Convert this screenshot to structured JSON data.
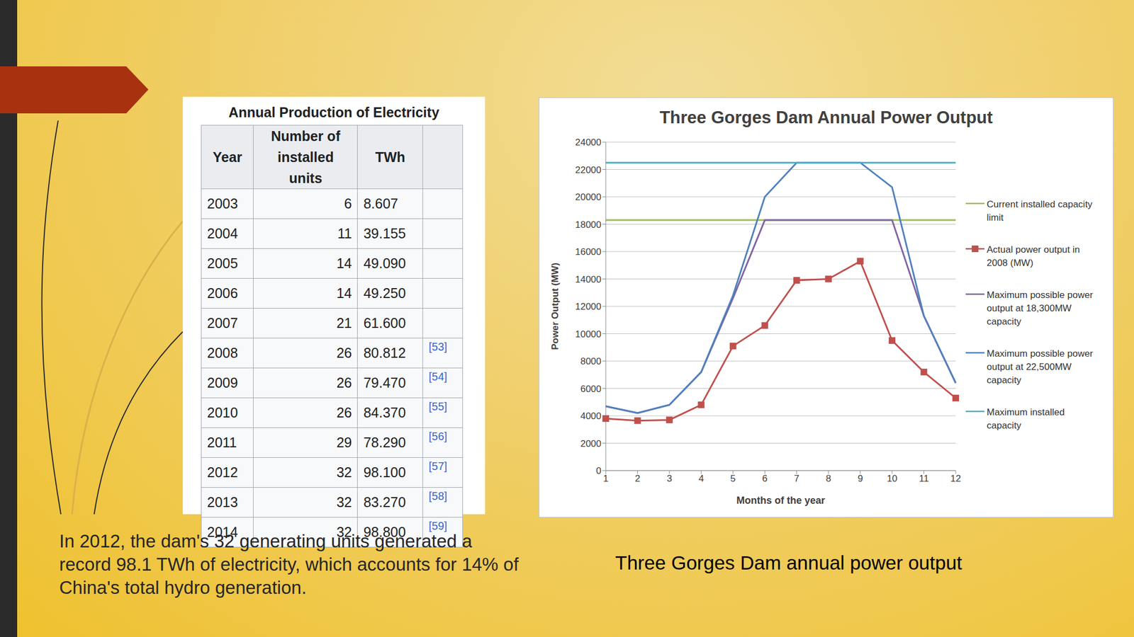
{
  "table": {
    "title": "Annual Production of Electricity",
    "columns": [
      "Year",
      "Number of installed units",
      "TWh"
    ],
    "rows": [
      [
        "2003",
        "6",
        "8.607"
      ],
      [
        "2004",
        "11",
        "39.155"
      ],
      [
        "2005",
        "14",
        "49.090"
      ],
      [
        "2006",
        "14",
        "49.250"
      ],
      [
        "2007",
        "21",
        "61.600"
      ],
      [
        "2008",
        "26",
        "80.812",
        "[53]"
      ],
      [
        "2009",
        "26",
        "79.470",
        "[54]"
      ],
      [
        "2010",
        "26",
        "84.370",
        "[55]"
      ],
      [
        "2011",
        "29",
        "78.290",
        "[56]"
      ],
      [
        "2012",
        "32",
        "98.100",
        "[57]"
      ],
      [
        "2013",
        "32",
        "83.270",
        "[58]"
      ],
      [
        "2014",
        "32",
        "98.800",
        "[59]"
      ]
    ]
  },
  "texts": {
    "caption_left": "In 2012, the dam's 32 generating units generated a record 98.1 TWh of electricity, which accounts for 14% of China's total hydro generation.",
    "caption_right": "Three Gorges Dam annual power output"
  },
  "chart_data": {
    "type": "line",
    "title": "Three Gorges Dam Annual Power Output",
    "x_label": "Months of the year",
    "y_label": "Power Output (MW)",
    "categories": [
      1,
      2,
      3,
      4,
      5,
      6,
      7,
      8,
      9,
      10,
      11,
      12
    ],
    "ylim": [
      0,
      24000
    ],
    "yticks": [
      0,
      2000,
      4000,
      6000,
      8000,
      10000,
      12000,
      14000,
      16000,
      18000,
      20000,
      22000,
      24000
    ],
    "grid": true,
    "legend": "right",
    "series": [
      {
        "name": "Current installed capacity limit",
        "color": "#9bbb59",
        "marker": "none",
        "values": [
          18300,
          18300,
          18300,
          18300,
          18300,
          18300,
          18300,
          18300,
          18300,
          18300,
          18300,
          18300
        ]
      },
      {
        "name": "Actual power output in 2008 (MW)",
        "color": "#c0504d",
        "marker": "square",
        "values": [
          3800,
          3650,
          3700,
          4800,
          9100,
          10600,
          13900,
          14000,
          15300,
          9500,
          7200,
          5300
        ]
      },
      {
        "name": "Maximum possible power output at 18,300MW capacity",
        "color": "#8064a2",
        "marker": "none",
        "values": [
          4700,
          4200,
          4800,
          7200,
          12600,
          18300,
          18300,
          18300,
          18300,
          18300,
          11300,
          6400
        ]
      },
      {
        "name": "Maximum possible power output at 22,500MW capacity",
        "color": "#4f81bd",
        "marker": "none",
        "values": [
          4700,
          4200,
          4800,
          7200,
          12800,
          20000,
          22500,
          22500,
          22500,
          20700,
          11300,
          6400
        ]
      },
      {
        "name": "Maximum installed capacity",
        "color": "#4bacc6",
        "marker": "none",
        "values": [
          22500,
          22500,
          22500,
          22500,
          22500,
          22500,
          22500,
          22500,
          22500,
          22500,
          22500,
          22500
        ]
      }
    ]
  }
}
